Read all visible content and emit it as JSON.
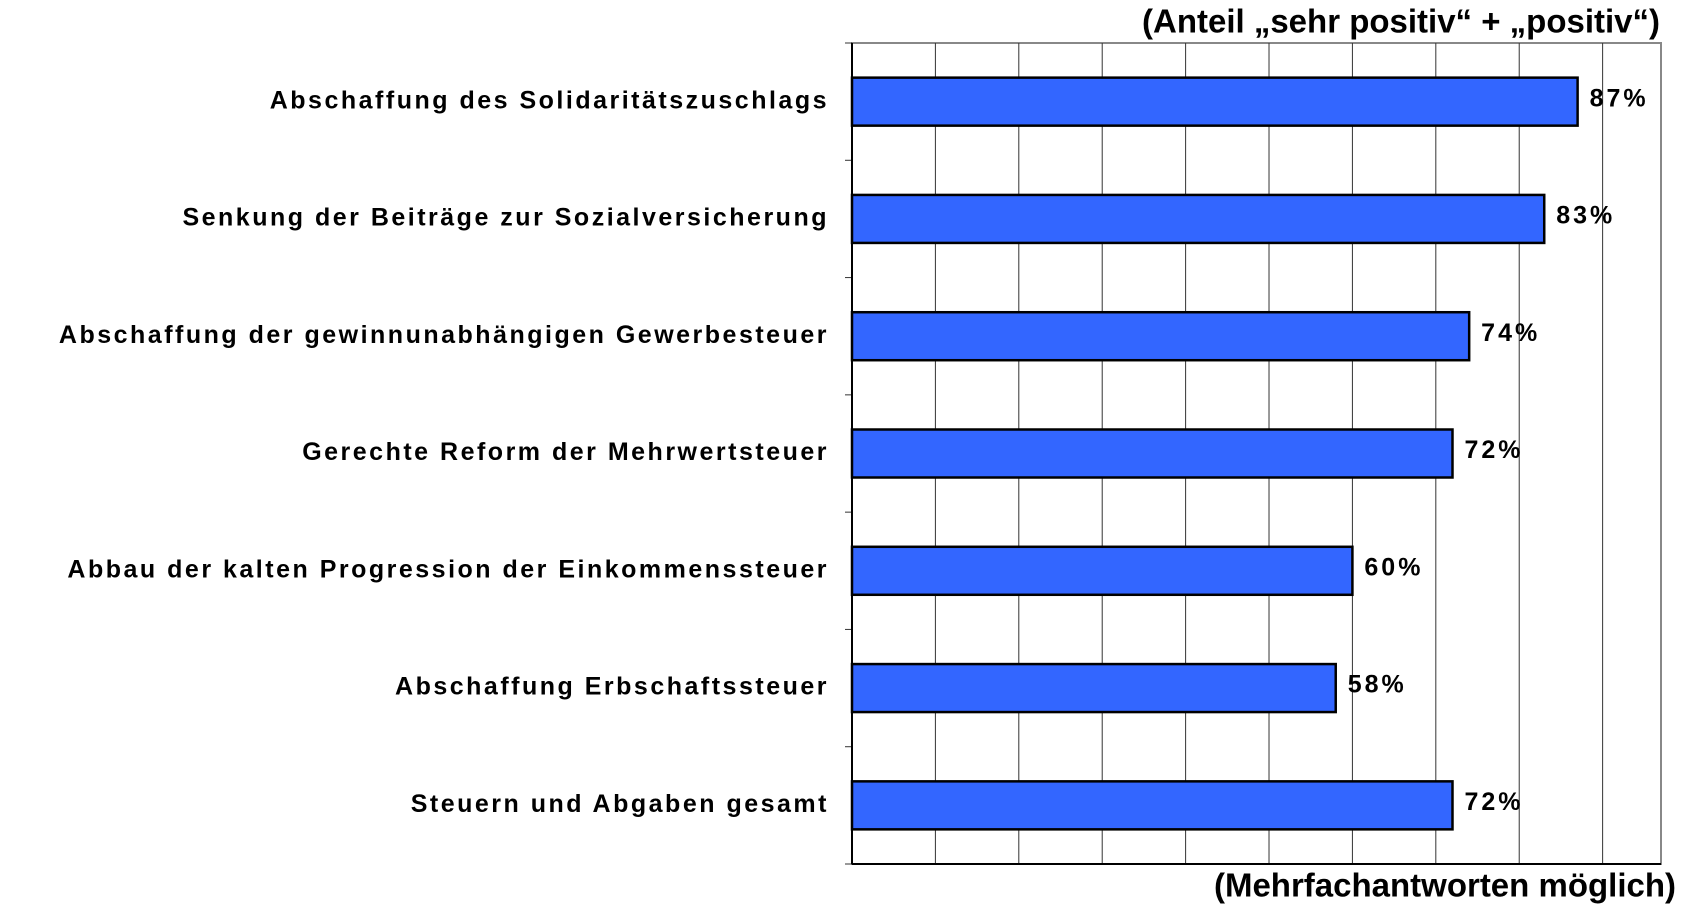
{
  "chart_data": {
    "type": "bar",
    "orientation": "horizontal",
    "title": "(Anteil „sehr positiv“ + „positiv“)",
    "footnote": "(Mehrfachantworten möglich)",
    "categories": [
      "Abschaffung des Solidaritätszuschlags",
      "Senkung der Beiträge zur Sozialversicherung",
      "Abschaffung der gewinnunabhängigen Gewerbesteuer",
      "Gerechte Reform der Mehrwertsteuer",
      "Abbau der kalten Progression der Einkommenssteuer",
      "Abschaffung Erbschaftssteuer",
      "Steuern und Abgaben gesamt"
    ],
    "values": [
      87,
      83,
      74,
      72,
      60,
      58,
      72
    ],
    "value_labels": [
      "87%",
      "83%",
      "74%",
      "72%",
      "60%",
      "58%",
      "72%"
    ],
    "color": "#3366ff",
    "xlim": [
      0,
      97
    ],
    "xticks": [
      0,
      10,
      20,
      30,
      40,
      50,
      60,
      70,
      80,
      90
    ],
    "grid": true
  }
}
